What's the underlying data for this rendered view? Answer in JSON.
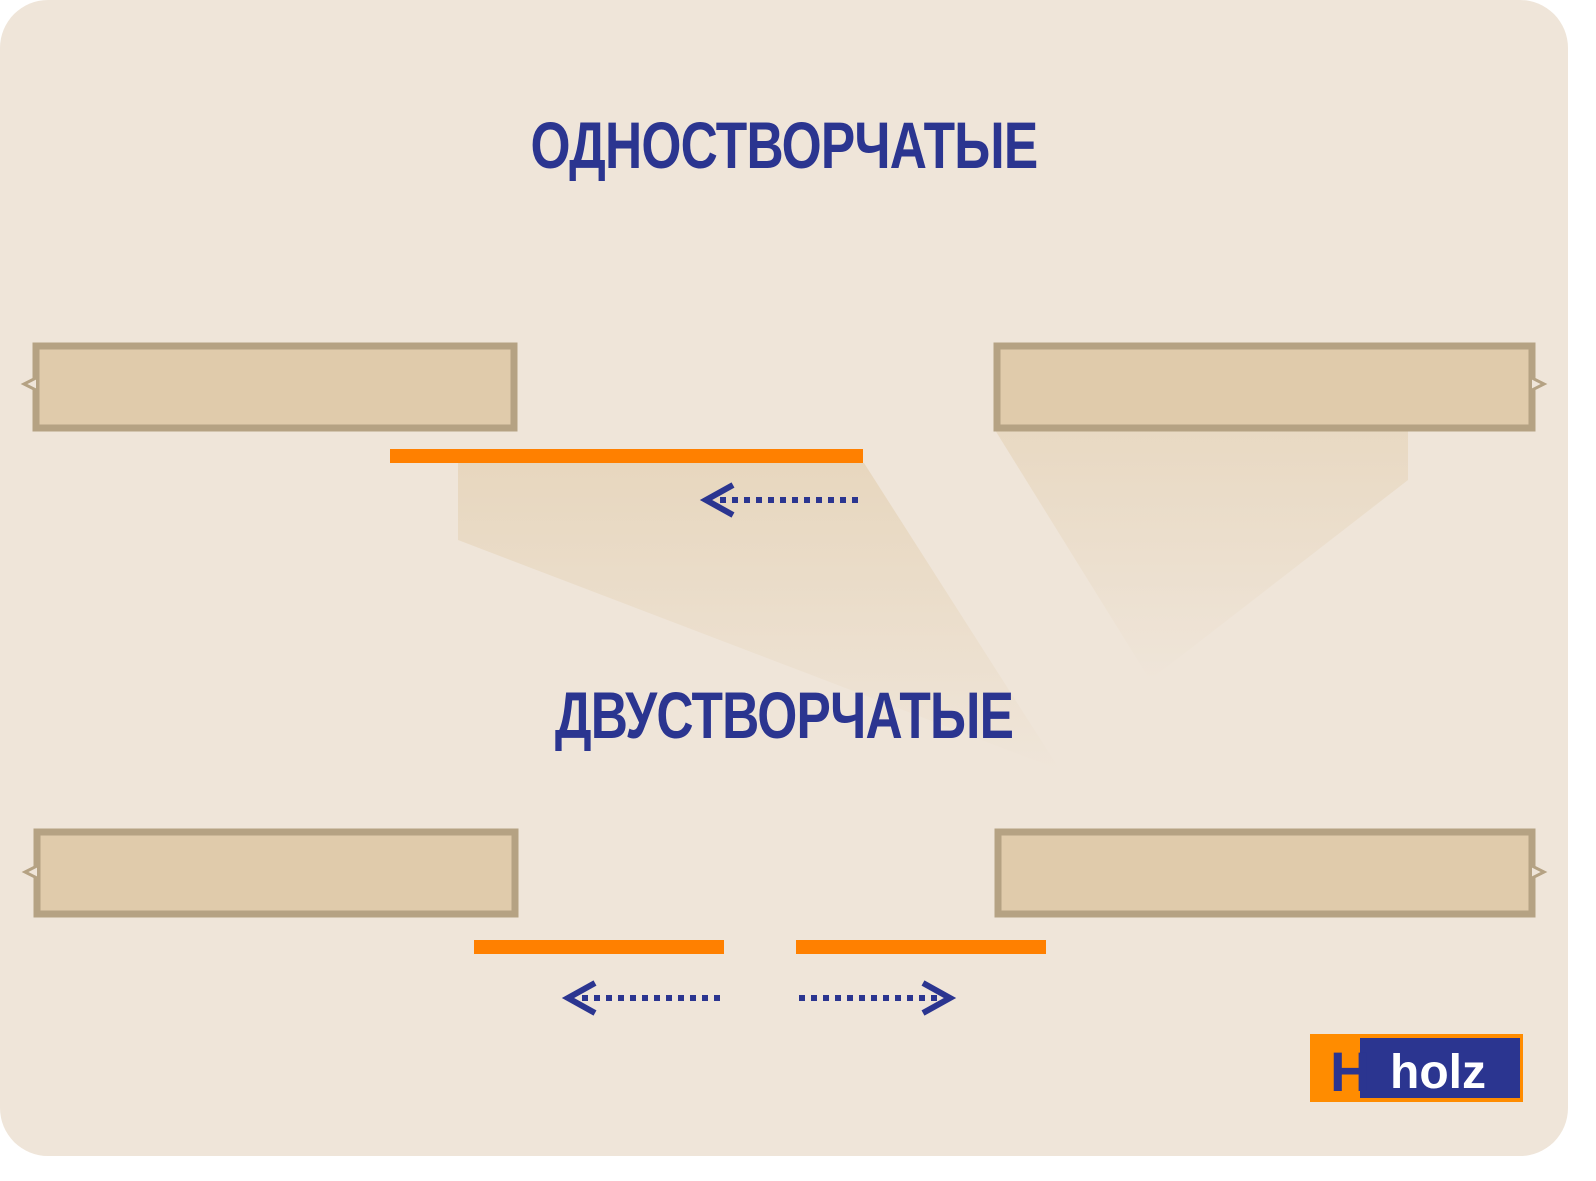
{
  "titles": {
    "single_leaf": "ОДНОСТВОРЧАТЫЕ",
    "double_leaf": "ДВУСТВОРЧАТЫЕ"
  },
  "logo": {
    "mark": "H",
    "word": "holz"
  },
  "colors": {
    "background": "#efe5d9",
    "title": "#2b3590",
    "wall_fill": "#e0cbab",
    "wall_border": "#b5a283",
    "door_leaf": "#ff8000",
    "arrow": "#2b3590",
    "logo_orange": "#ff8c00",
    "logo_navy": "#2b3590"
  },
  "icons": [
    "arrow-left-dotted-icon",
    "arrow-right-dotted-icon",
    "holz-logo"
  ]
}
